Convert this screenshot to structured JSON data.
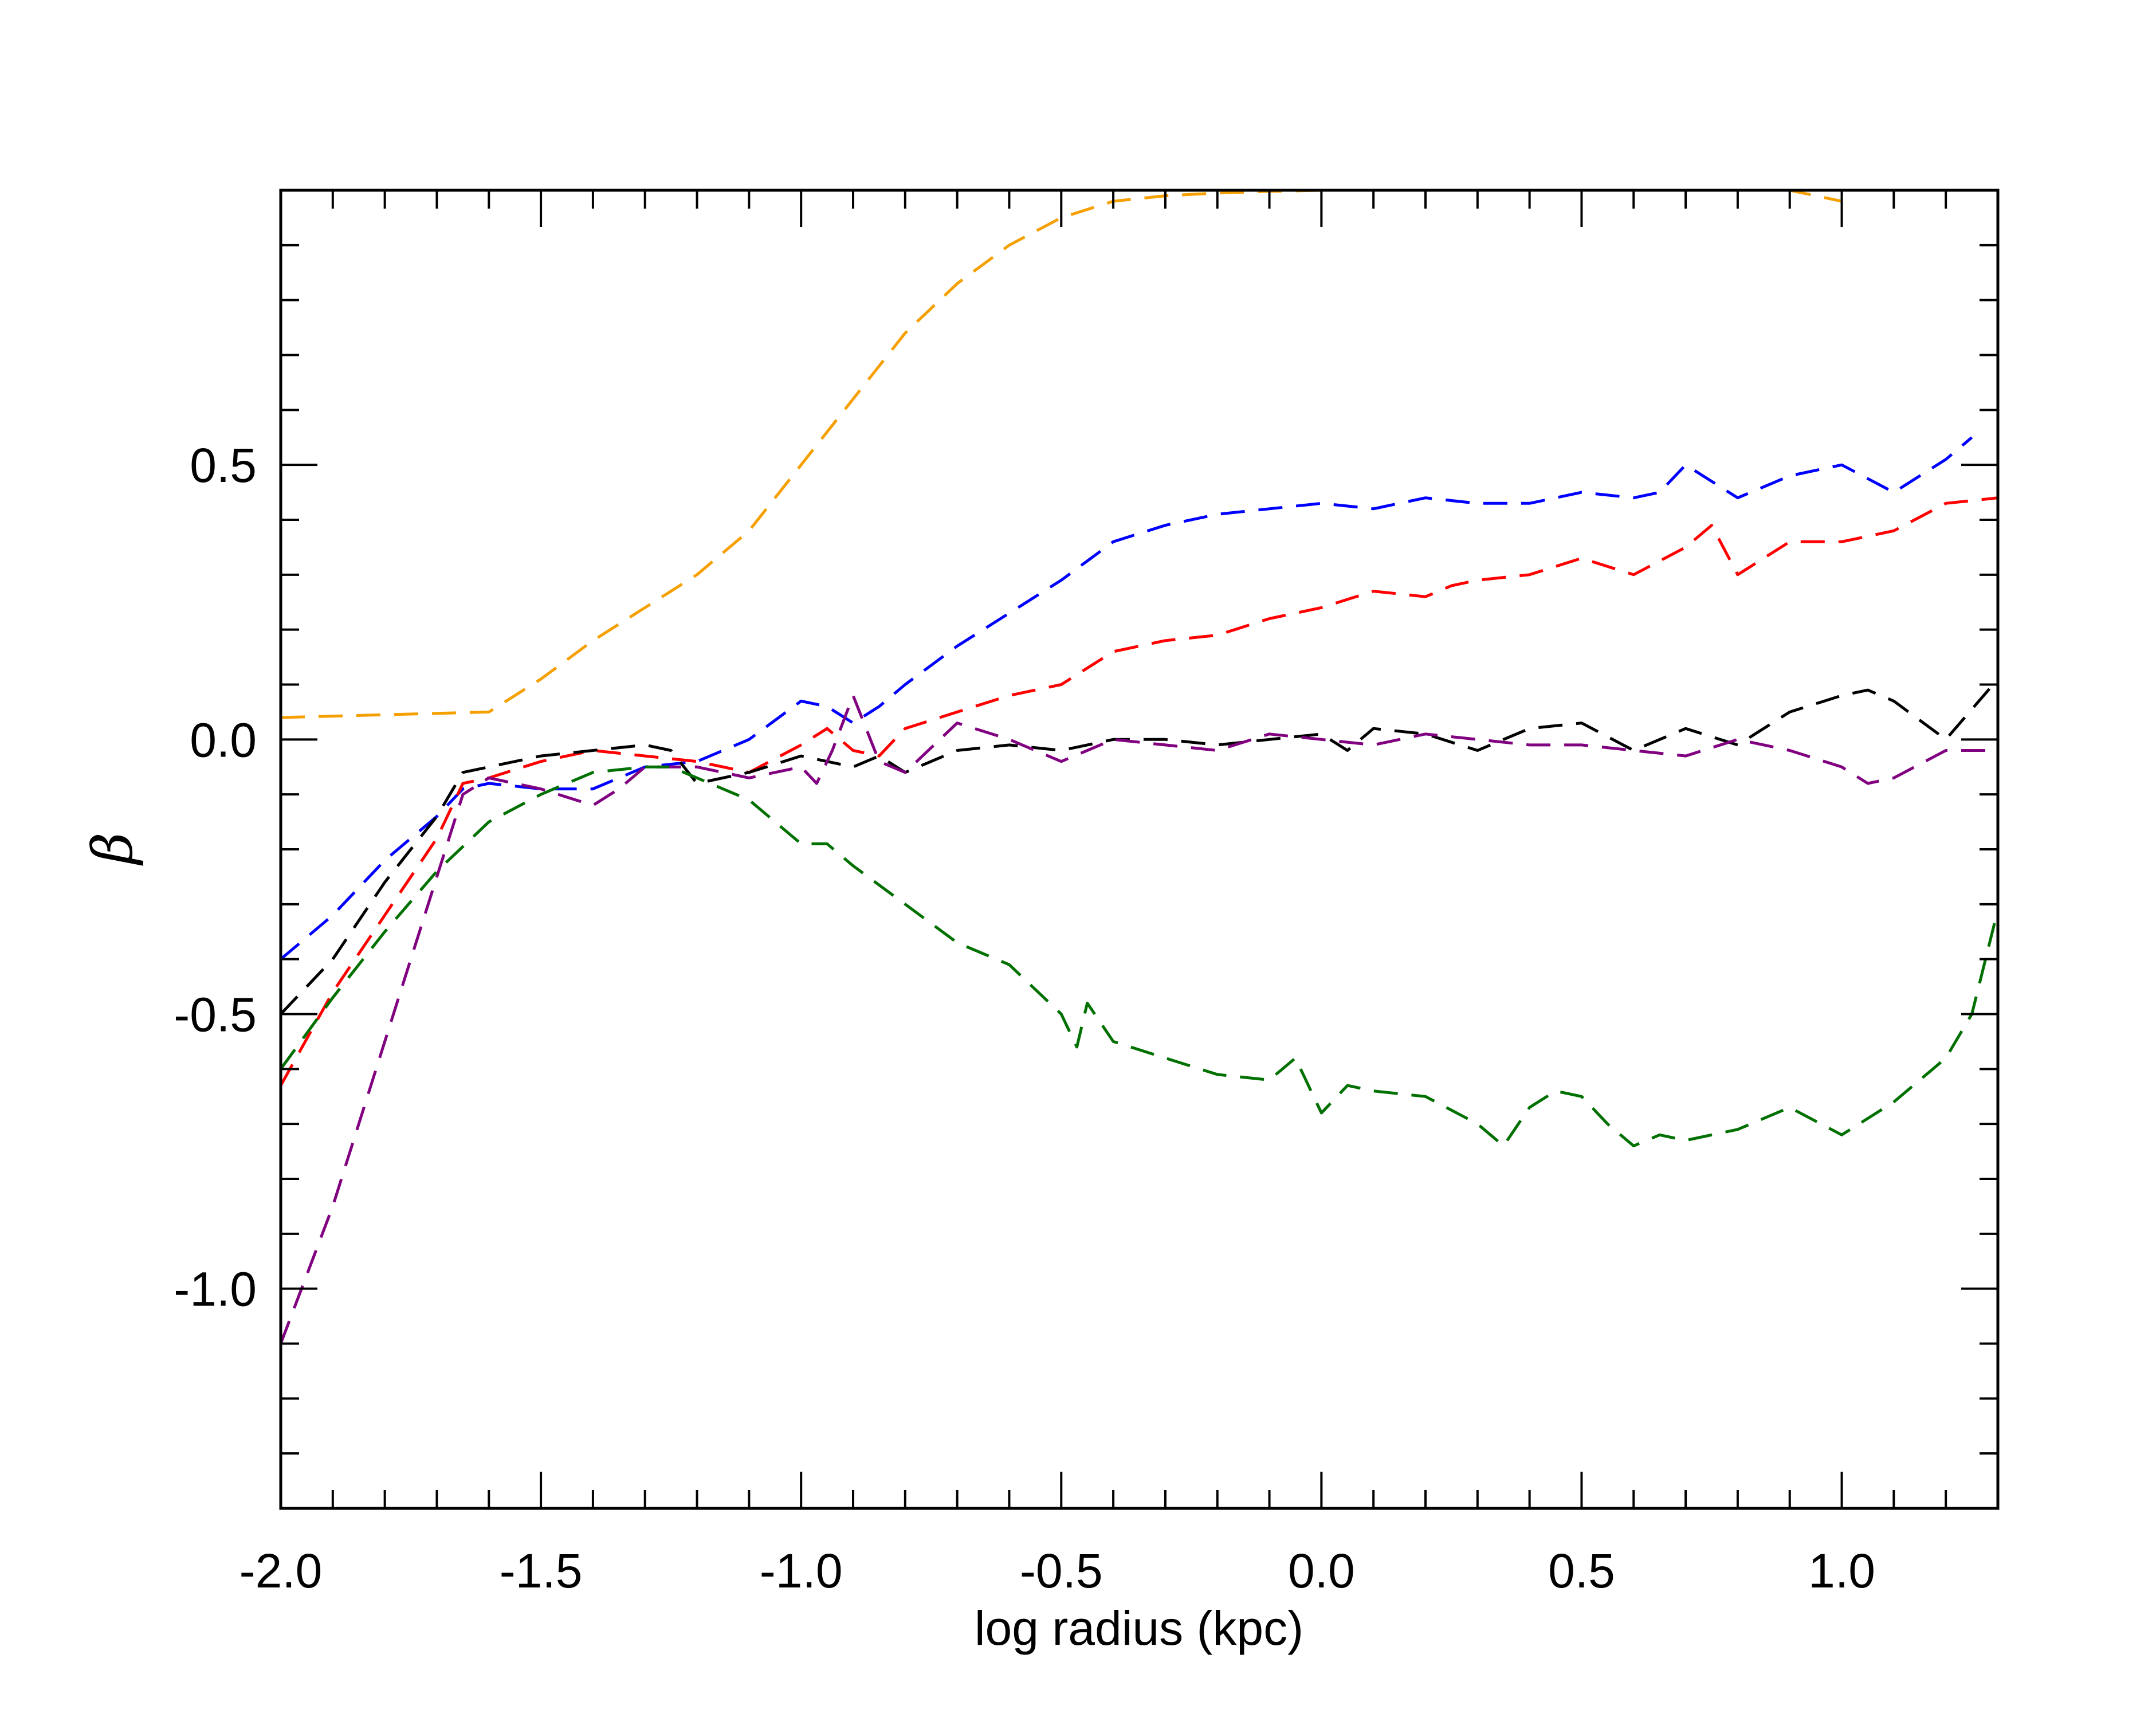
{
  "chart_data": {
    "type": "line",
    "title": "",
    "xlabel": "log radius (kpc)",
    "ylabel": "β",
    "xlim": [
      -2.0,
      1.3
    ],
    "ylim": [
      -1.4,
      1.0
    ],
    "grid": false,
    "legend": "none",
    "x_ticks": [
      "-2.0",
      "-1.5",
      "-1.0",
      "-0.5",
      "0.0",
      "0.5",
      "1.0"
    ],
    "y_ticks": [
      "-1.0",
      "-0.5",
      "0.0",
      "0.5"
    ],
    "series": [
      {
        "color": "#f5a000",
        "line_style": "dashed",
        "x": [
          -2.0,
          -1.8,
          -1.6,
          -1.5,
          -1.4,
          -1.3,
          -1.2,
          -1.1,
          -1.0,
          -0.9,
          -0.8,
          -0.7,
          -0.6,
          -0.5,
          -0.4,
          -0.3,
          -0.2,
          -0.1,
          0.0,
          0.1,
          0.2,
          0.3,
          0.4,
          0.5,
          0.6,
          0.7,
          0.8,
          0.9,
          1.0
        ],
        "y": [
          0.04,
          0.045,
          0.05,
          0.11,
          0.18,
          0.24,
          0.3,
          0.38,
          0.5,
          0.62,
          0.74,
          0.83,
          0.9,
          0.95,
          0.98,
          0.99,
          0.995,
          0.998,
          1.0,
          1.0,
          1.0,
          1.0,
          1.0,
          1.0,
          1.0,
          1.0,
          1.0,
          1.0,
          0.98
        ]
      },
      {
        "color": "#0000ff",
        "line_style": "dashed",
        "x": [
          -2.0,
          -1.9,
          -1.8,
          -1.7,
          -1.65,
          -1.6,
          -1.5,
          -1.4,
          -1.3,
          -1.2,
          -1.15,
          -1.1,
          -1.0,
          -0.95,
          -0.9,
          -0.85,
          -0.8,
          -0.7,
          -0.6,
          -0.5,
          -0.4,
          -0.3,
          -0.2,
          -0.1,
          0.0,
          0.1,
          0.2,
          0.3,
          0.4,
          0.5,
          0.6,
          0.65,
          0.7,
          0.8,
          0.9,
          1.0,
          1.1,
          1.2,
          1.25
        ],
        "y": [
          -0.4,
          -0.32,
          -0.22,
          -0.14,
          -0.09,
          -0.08,
          -0.09,
          -0.09,
          -0.05,
          -0.04,
          -0.02,
          0.0,
          0.07,
          0.06,
          0.03,
          0.06,
          0.1,
          0.17,
          0.23,
          0.29,
          0.36,
          0.39,
          0.41,
          0.42,
          0.43,
          0.42,
          0.44,
          0.43,
          0.43,
          0.45,
          0.44,
          0.45,
          0.5,
          0.44,
          0.48,
          0.5,
          0.45,
          0.51,
          0.55
        ]
      },
      {
        "color": "#ff0000",
        "line_style": "dashed",
        "x": [
          -2.0,
          -1.9,
          -1.8,
          -1.7,
          -1.65,
          -1.6,
          -1.5,
          -1.4,
          -1.3,
          -1.2,
          -1.1,
          -1.0,
          -0.95,
          -0.9,
          -0.85,
          -0.8,
          -0.7,
          -0.6,
          -0.5,
          -0.4,
          -0.3,
          -0.2,
          -0.1,
          0.0,
          0.1,
          0.2,
          0.25,
          0.3,
          0.4,
          0.5,
          0.6,
          0.7,
          0.75,
          0.8,
          0.9,
          1.0,
          1.05,
          1.1,
          1.2,
          1.3
        ],
        "y": [
          -0.63,
          -0.46,
          -0.32,
          -0.18,
          -0.08,
          -0.07,
          -0.04,
          -0.02,
          -0.03,
          -0.04,
          -0.06,
          -0.01,
          0.02,
          -0.02,
          -0.03,
          0.02,
          0.05,
          0.08,
          0.1,
          0.16,
          0.18,
          0.19,
          0.22,
          0.24,
          0.27,
          0.26,
          0.28,
          0.29,
          0.3,
          0.33,
          0.3,
          0.35,
          0.39,
          0.3,
          0.36,
          0.36,
          0.37,
          0.38,
          0.43,
          0.44
        ]
      },
      {
        "color": "#000000",
        "line_style": "dashed",
        "x": [
          -2.0,
          -1.9,
          -1.8,
          -1.7,
          -1.65,
          -1.6,
          -1.5,
          -1.4,
          -1.3,
          -1.25,
          -1.2,
          -1.1,
          -1.0,
          -0.95,
          -0.9,
          -0.85,
          -0.8,
          -0.7,
          -0.6,
          -0.5,
          -0.4,
          -0.3,
          -0.2,
          -0.1,
          0.0,
          0.05,
          0.1,
          0.2,
          0.3,
          0.4,
          0.5,
          0.6,
          0.7,
          0.8,
          0.9,
          1.0,
          1.05,
          1.1,
          1.2,
          1.3
        ],
        "y": [
          -0.5,
          -0.4,
          -0.26,
          -0.14,
          -0.06,
          -0.05,
          -0.03,
          -0.02,
          -0.01,
          -0.02,
          -0.08,
          -0.06,
          -0.03,
          -0.04,
          -0.05,
          -0.03,
          -0.06,
          -0.02,
          -0.01,
          -0.02,
          0.0,
          0.0,
          -0.01,
          0.0,
          0.01,
          -0.02,
          0.02,
          0.01,
          -0.02,
          0.02,
          0.03,
          -0.02,
          0.02,
          -0.01,
          0.05,
          0.08,
          0.09,
          0.07,
          0.0,
          0.11
        ]
      },
      {
        "color": "#800080",
        "line_style": "dashed",
        "x": [
          -2.0,
          -1.9,
          -1.8,
          -1.7,
          -1.65,
          -1.6,
          -1.5,
          -1.4,
          -1.35,
          -1.3,
          -1.2,
          -1.1,
          -1.0,
          -0.97,
          -0.94,
          -0.9,
          -0.85,
          -0.8,
          -0.7,
          -0.6,
          -0.5,
          -0.4,
          -0.3,
          -0.2,
          -0.1,
          0.0,
          0.1,
          0.2,
          0.3,
          0.4,
          0.5,
          0.6,
          0.7,
          0.8,
          0.9,
          1.0,
          1.05,
          1.1,
          1.2,
          1.3
        ],
        "y": [
          -1.1,
          -0.85,
          -0.55,
          -0.25,
          -0.1,
          -0.07,
          -0.09,
          -0.12,
          -0.09,
          -0.05,
          -0.05,
          -0.07,
          -0.05,
          -0.08,
          -0.02,
          0.08,
          -0.04,
          -0.06,
          0.03,
          0.0,
          -0.04,
          0.0,
          -0.01,
          -0.02,
          0.01,
          0.0,
          -0.01,
          0.01,
          0.0,
          -0.01,
          -0.01,
          -0.02,
          -0.03,
          0.0,
          -0.02,
          -0.05,
          -0.08,
          -0.07,
          -0.02,
          -0.02
        ]
      },
      {
        "color": "#007000",
        "line_style": "dashed",
        "x": [
          -2.0,
          -1.9,
          -1.8,
          -1.7,
          -1.6,
          -1.5,
          -1.4,
          -1.3,
          -1.25,
          -1.2,
          -1.1,
          -1.0,
          -0.95,
          -0.9,
          -0.8,
          -0.7,
          -0.6,
          -0.5,
          -0.47,
          -0.45,
          -0.4,
          -0.3,
          -0.2,
          -0.1,
          -0.05,
          -0.02,
          0.0,
          0.05,
          0.1,
          0.2,
          0.3,
          0.35,
          0.4,
          0.45,
          0.5,
          0.55,
          0.6,
          0.65,
          0.7,
          0.8,
          0.9,
          1.0,
          1.1,
          1.2,
          1.25,
          1.3
        ],
        "y": [
          -0.6,
          -0.47,
          -0.35,
          -0.24,
          -0.15,
          -0.1,
          -0.06,
          -0.05,
          -0.05,
          -0.07,
          -0.11,
          -0.19,
          -0.19,
          -0.23,
          -0.3,
          -0.37,
          -0.41,
          -0.5,
          -0.56,
          -0.48,
          -0.55,
          -0.58,
          -0.61,
          -0.62,
          -0.58,
          -0.64,
          -0.68,
          -0.63,
          -0.64,
          -0.65,
          -0.7,
          -0.74,
          -0.67,
          -0.64,
          -0.65,
          -0.7,
          -0.74,
          -0.72,
          -0.73,
          -0.71,
          -0.67,
          -0.72,
          -0.66,
          -0.58,
          -0.5,
          -0.31
        ]
      }
    ]
  }
}
